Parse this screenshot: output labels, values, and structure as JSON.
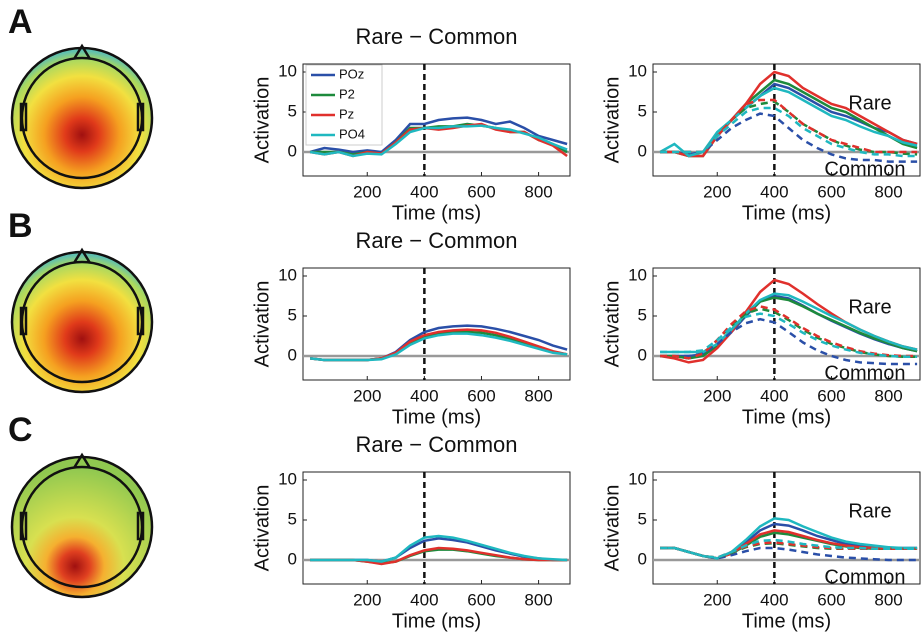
{
  "panel_labels": [
    "A",
    "B",
    "C"
  ],
  "chart_data": [
    {
      "type": "line",
      "title": "Rare − Common",
      "xlabel": "Time (ms)",
      "ylabel": "Activation",
      "x": [
        0,
        50,
        100,
        150,
        200,
        250,
        300,
        350,
        400,
        450,
        500,
        550,
        600,
        650,
        700,
        750,
        800,
        850,
        900
      ],
      "xlim": [
        -25,
        910
      ],
      "xticks": [
        200,
        400,
        600,
        800
      ],
      "ylim": [
        -3,
        11
      ],
      "yticks": [
        0,
        5,
        10
      ],
      "vline": 400,
      "hline": 0,
      "legend": "upper left",
      "series": [
        {
          "name": "POz",
          "color": "#2a4fa8",
          "style": "solid",
          "values": [
            0,
            0.5,
            0.3,
            0,
            0.2,
            0,
            1.5,
            3.5,
            3.5,
            4,
            4.2,
            4.3,
            4,
            3.5,
            3.8,
            3,
            2,
            1.5,
            1
          ]
        },
        {
          "name": "P2",
          "color": "#1d8a3c",
          "style": "solid",
          "values": [
            0,
            0,
            0,
            -0.3,
            0,
            -0.2,
            1.2,
            3,
            3,
            3.2,
            3.2,
            3.5,
            3.3,
            3,
            2.5,
            2.5,
            1.5,
            1,
            0
          ]
        },
        {
          "name": "Pz",
          "color": "#e0302c",
          "style": "solid",
          "values": [
            0,
            -0.3,
            0,
            -0.5,
            0,
            -0.2,
            1.2,
            2.8,
            3,
            2.8,
            3,
            3.3,
            3.5,
            2.8,
            2.5,
            2.5,
            1.5,
            0.8,
            -0.5
          ]
        },
        {
          "name": "PO4",
          "color": "#1fb8c0",
          "style": "solid",
          "values": [
            0,
            -0.3,
            0,
            -0.5,
            -0.2,
            -0.3,
            1,
            2.5,
            3,
            3,
            3.2,
            3.2,
            3.3,
            3,
            2.8,
            2.3,
            1.8,
            1,
            0.3
          ]
        }
      ]
    },
    {
      "type": "line",
      "xlabel": "Time (ms)",
      "ylabel": "Activation",
      "x": [
        0,
        50,
        100,
        150,
        200,
        250,
        300,
        350,
        400,
        450,
        500,
        550,
        600,
        650,
        700,
        750,
        800,
        850,
        900
      ],
      "xlim": [
        -25,
        910
      ],
      "xticks": [
        200,
        400,
        600,
        800
      ],
      "ylim": [
        -3,
        11
      ],
      "yticks": [
        0,
        5,
        10
      ],
      "vline": 400,
      "hline": 0,
      "annotations": [
        "Rare",
        "Common"
      ],
      "series": [
        {
          "color": "#2a4fa8",
          "style": "solid",
          "values": [
            0,
            0,
            -0.3,
            0,
            2,
            4,
            5.5,
            7,
            8.5,
            8,
            7,
            6,
            5,
            4.5,
            3.8,
            3,
            2.5,
            1.5,
            1
          ]
        },
        {
          "color": "#1d8a3c",
          "style": "solid",
          "values": [
            0,
            0,
            -0.5,
            -0.5,
            2,
            4,
            6,
            7.5,
            9,
            8.5,
            7.5,
            6.5,
            5.5,
            5,
            4,
            3,
            2,
            1,
            0.5
          ]
        },
        {
          "color": "#e0302c",
          "style": "solid",
          "values": [
            0,
            0,
            -0.5,
            -0.5,
            2,
            4,
            6,
            8.5,
            10,
            9.5,
            8,
            7,
            6,
            5.5,
            4.5,
            3.5,
            2.5,
            1.5,
            1
          ]
        },
        {
          "color": "#1fb8c0",
          "style": "solid",
          "values": [
            0,
            1,
            -0.5,
            0,
            2.5,
            4,
            5.5,
            7,
            8,
            7.5,
            6.5,
            5.5,
            4.5,
            4,
            3.2,
            2.5,
            2,
            1.2,
            0.8
          ]
        },
        {
          "color": "#2a4fa8",
          "style": "dashed",
          "values": [
            0,
            0,
            0,
            0,
            1.5,
            3,
            4,
            4.8,
            4.5,
            3,
            1.5,
            0.5,
            -0.3,
            -0.8,
            -1,
            -1,
            -1.2,
            -1.2,
            -1.2
          ]
        },
        {
          "color": "#1d8a3c",
          "style": "dashed",
          "values": [
            0,
            0,
            0,
            0,
            2,
            4,
            5.5,
            6,
            6.3,
            5,
            3.5,
            2.5,
            1.5,
            0.8,
            0.3,
            0,
            0,
            -0.2,
            -0.3
          ]
        },
        {
          "color": "#e0302c",
          "style": "dashed",
          "values": [
            0,
            0,
            0,
            0,
            2,
            4,
            6,
            6.5,
            6.5,
            5,
            3.5,
            2.5,
            1.5,
            1,
            0.5,
            0,
            0,
            0,
            0
          ]
        },
        {
          "color": "#1fb8c0",
          "style": "dashed",
          "values": [
            0,
            0,
            0,
            0,
            2,
            3.5,
            5,
            5.5,
            5.5,
            4.5,
            3,
            2,
            1,
            0.5,
            0,
            -0.3,
            -0.3,
            -0.5,
            -0.5
          ]
        }
      ]
    },
    {
      "type": "line",
      "title": "Rare − Common",
      "xlabel": "Time (ms)",
      "ylabel": "Activation",
      "x": [
        0,
        50,
        100,
        150,
        200,
        250,
        300,
        350,
        400,
        450,
        500,
        550,
        600,
        650,
        700,
        750,
        800,
        850,
        900
      ],
      "xlim": [
        -25,
        910
      ],
      "xticks": [
        200,
        400,
        600,
        800
      ],
      "ylim": [
        -3,
        11
      ],
      "yticks": [
        0,
        5,
        10
      ],
      "vline": 400,
      "hline": 0,
      "series": [
        {
          "color": "#2a4fa8",
          "style": "solid",
          "values": [
            -0.3,
            -0.5,
            -0.5,
            -0.5,
            -0.5,
            -0.3,
            0.5,
            2,
            3,
            3.5,
            3.7,
            3.8,
            3.7,
            3.4,
            3,
            2.5,
            2,
            1.3,
            0.8
          ]
        },
        {
          "color": "#1d8a3c",
          "style": "solid",
          "values": [
            -0.3,
            -0.5,
            -0.5,
            -0.5,
            -0.5,
            -0.3,
            0.3,
            1.6,
            2.4,
            2.8,
            3,
            3,
            2.9,
            2.6,
            2.1,
            1.6,
            1,
            0.5,
            0.2
          ]
        },
        {
          "color": "#e0302c",
          "style": "solid",
          "values": [
            -0.3,
            -0.5,
            -0.5,
            -0.5,
            -0.5,
            -0.3,
            0.4,
            1.8,
            2.6,
            3,
            3.2,
            3.3,
            3.2,
            2.9,
            2.4,
            1.8,
            1.2,
            0.6,
            0.2
          ]
        },
        {
          "color": "#1fb8c0",
          "style": "solid",
          "values": [
            -0.3,
            -0.5,
            -0.5,
            -0.5,
            -0.5,
            -0.4,
            0.2,
            1.4,
            2.2,
            2.6,
            2.8,
            2.8,
            2.6,
            2.3,
            1.9,
            1.4,
            0.9,
            0.4,
            0.2
          ]
        }
      ]
    },
    {
      "type": "line",
      "xlabel": "Time (ms)",
      "ylabel": "Activation",
      "x": [
        0,
        50,
        100,
        150,
        200,
        250,
        300,
        350,
        400,
        450,
        500,
        550,
        600,
        650,
        700,
        750,
        800,
        850,
        900
      ],
      "xlim": [
        -25,
        910
      ],
      "xticks": [
        200,
        400,
        600,
        800
      ],
      "ylim": [
        -3,
        11
      ],
      "yticks": [
        0,
        5,
        10
      ],
      "vline": 400,
      "hline": 0,
      "annotations": [
        "Rare",
        "Common"
      ],
      "series": [
        {
          "color": "#2a4fa8",
          "style": "solid",
          "values": [
            0,
            0,
            0,
            0.2,
            1.2,
            3,
            5,
            6.8,
            7.5,
            7.2,
            6.3,
            5.3,
            4.4,
            3.6,
            2.8,
            2.1,
            1.5,
            1,
            0.6
          ]
        },
        {
          "color": "#1d8a3c",
          "style": "solid",
          "values": [
            0,
            0,
            -0.3,
            0,
            1.3,
            3.2,
            5.2,
            6.8,
            7.3,
            7,
            6.2,
            5.3,
            4.5,
            3.7,
            2.9,
            2.2,
            1.6,
            1,
            0.6
          ]
        },
        {
          "color": "#e0302c",
          "style": "solid",
          "values": [
            0,
            -0.3,
            -0.8,
            -0.5,
            1,
            3,
            5.5,
            8,
            9.5,
            9,
            7.8,
            6.5,
            5.3,
            4.2,
            3.3,
            2.5,
            1.8,
            1.2,
            0.8
          ]
        },
        {
          "color": "#1fb8c0",
          "style": "solid",
          "values": [
            0.5,
            0.5,
            0.5,
            0.5,
            1.5,
            3.3,
            5.3,
            7,
            7.8,
            7.6,
            6.8,
            5.9,
            5,
            4.2,
            3.3,
            2.5,
            1.8,
            1.2,
            0.8
          ]
        },
        {
          "color": "#2a4fa8",
          "style": "dashed",
          "values": [
            0,
            0,
            0,
            0.3,
            1.5,
            3,
            4.1,
            4.6,
            4.2,
            3,
            1.7,
            0.7,
            0,
            -0.5,
            -0.8,
            -0.9,
            -1,
            -1,
            -1
          ]
        },
        {
          "color": "#1d8a3c",
          "style": "dashed",
          "values": [
            0,
            0,
            -0.3,
            0.3,
            2,
            3.8,
            5.3,
            5.9,
            5.5,
            4.5,
            3.3,
            2.3,
            1.5,
            1,
            0.5,
            0.2,
            0,
            -0.1,
            -0.1
          ]
        },
        {
          "color": "#e0302c",
          "style": "dashed",
          "values": [
            0,
            0,
            -0.3,
            0.3,
            2,
            4,
            5.6,
            6.2,
            5.8,
            4.7,
            3.5,
            2.5,
            1.7,
            1.1,
            0.6,
            0.3,
            0.1,
            0,
            0
          ]
        },
        {
          "color": "#1fb8c0",
          "style": "dashed",
          "values": [
            0.5,
            0.5,
            0.5,
            0.7,
            2,
            3.6,
            4.9,
            5.3,
            5,
            4,
            2.9,
            2,
            1.3,
            0.8,
            0.4,
            0.2,
            0,
            -0.1,
            -0.1
          ]
        }
      ]
    },
    {
      "type": "line",
      "title": "Rare − Common",
      "xlabel": "Time (ms)",
      "ylabel": "Activation",
      "x": [
        0,
        50,
        100,
        150,
        200,
        250,
        300,
        350,
        400,
        450,
        500,
        550,
        600,
        650,
        700,
        750,
        800,
        850,
        900
      ],
      "xlim": [
        -25,
        910
      ],
      "xticks": [
        200,
        400,
        600,
        800
      ],
      "ylim": [
        -3,
        11
      ],
      "yticks": [
        0,
        5,
        10
      ],
      "vline": 400,
      "hline": 0,
      "series": [
        {
          "color": "#2a4fa8",
          "style": "solid",
          "values": [
            0,
            0,
            0,
            0,
            0,
            -0.2,
            0.3,
            1.5,
            2.4,
            2.7,
            2.5,
            2.2,
            1.7,
            1.2,
            0.8,
            0.4,
            0.2,
            0,
            0
          ]
        },
        {
          "color": "#1d8a3c",
          "style": "solid",
          "values": [
            0,
            0,
            0,
            0,
            -0.2,
            -0.4,
            -0.2,
            0.5,
            1.1,
            1.3,
            1.3,
            1.1,
            0.8,
            0.5,
            0.3,
            0.1,
            0,
            0,
            0
          ]
        },
        {
          "color": "#e0302c",
          "style": "solid",
          "values": [
            0,
            0,
            0,
            0,
            -0.2,
            -0.5,
            -0.2,
            0.6,
            1.2,
            1.5,
            1.4,
            1.2,
            0.9,
            0.6,
            0.3,
            0.1,
            0,
            0,
            0
          ]
        },
        {
          "color": "#1fb8c0",
          "style": "solid",
          "values": [
            0,
            0,
            0,
            0,
            0,
            -0.2,
            0.3,
            1.8,
            2.8,
            3,
            2.8,
            2.4,
            1.9,
            1.4,
            0.9,
            0.5,
            0.2,
            0.1,
            0
          ]
        }
      ]
    },
    {
      "type": "line",
      "xlabel": "Time (ms)",
      "ylabel": "Activation",
      "x": [
        0,
        50,
        100,
        150,
        200,
        250,
        300,
        350,
        400,
        450,
        500,
        550,
        600,
        650,
        700,
        750,
        800,
        850,
        900
      ],
      "xlim": [
        -25,
        910
      ],
      "xticks": [
        200,
        400,
        600,
        800
      ],
      "ylim": [
        -3,
        11
      ],
      "yticks": [
        0,
        5,
        10
      ],
      "vline": 400,
      "hline": 0,
      "annotations": [
        "Rare",
        "Common"
      ],
      "series": [
        {
          "color": "#2a4fa8",
          "style": "solid",
          "values": [
            1.5,
            1.5,
            1,
            0.5,
            0.2,
            1,
            2.2,
            3.7,
            4.5,
            4.3,
            3.7,
            3,
            2.5,
            2,
            1.8,
            1.6,
            1.5,
            1.5,
            1.5
          ]
        },
        {
          "color": "#1d8a3c",
          "style": "solid",
          "values": [
            1.5,
            1.5,
            1,
            0.5,
            0.2,
            0.8,
            1.8,
            2.9,
            3.4,
            3.2,
            2.8,
            2.4,
            2,
            1.7,
            1.5,
            1.4,
            1.4,
            1.4,
            1.4
          ]
        },
        {
          "color": "#e0302c",
          "style": "solid",
          "values": [
            1.5,
            1.5,
            1,
            0.5,
            0.2,
            0.8,
            2,
            3.2,
            3.7,
            3.5,
            3,
            2.5,
            2.1,
            1.8,
            1.6,
            1.5,
            1.4,
            1.4,
            1.4
          ]
        },
        {
          "color": "#1fb8c0",
          "style": "solid",
          "values": [
            1.5,
            1.5,
            1,
            0.5,
            0.2,
            1,
            2.5,
            4.2,
            5.2,
            5,
            4.2,
            3.5,
            2.8,
            2.3,
            2,
            1.8,
            1.6,
            1.5,
            1.5
          ]
        },
        {
          "color": "#2a4fa8",
          "style": "dashed",
          "values": [
            1.5,
            1.5,
            1,
            0.5,
            0.2,
            0.6,
            1.1,
            1.5,
            1.5,
            1.3,
            1,
            0.7,
            0.5,
            0.3,
            0.2,
            0.1,
            0,
            0,
            0
          ]
        },
        {
          "color": "#1d8a3c",
          "style": "dashed",
          "values": [
            1.5,
            1.5,
            1,
            0.5,
            0.3,
            0.9,
            1.6,
            2,
            2.1,
            1.9,
            1.7,
            1.5,
            1.4,
            1.4,
            1.4,
            1.4,
            1.4,
            1.4,
            1.4
          ]
        },
        {
          "color": "#e0302c",
          "style": "dashed",
          "values": [
            1.5,
            1.5,
            1,
            0.5,
            0.3,
            1,
            1.7,
            2.1,
            2.2,
            2,
            1.8,
            1.6,
            1.5,
            1.4,
            1.4,
            1.4,
            1.4,
            1.4,
            1.4
          ]
        },
        {
          "color": "#1fb8c0",
          "style": "dashed",
          "values": [
            1.5,
            1.5,
            1,
            0.5,
            0.3,
            1,
            1.8,
            2.4,
            2.5,
            2.3,
            2,
            1.8,
            1.6,
            1.5,
            1.5,
            1.4,
            1.4,
            1.4,
            1.4
          ]
        }
      ]
    }
  ]
}
